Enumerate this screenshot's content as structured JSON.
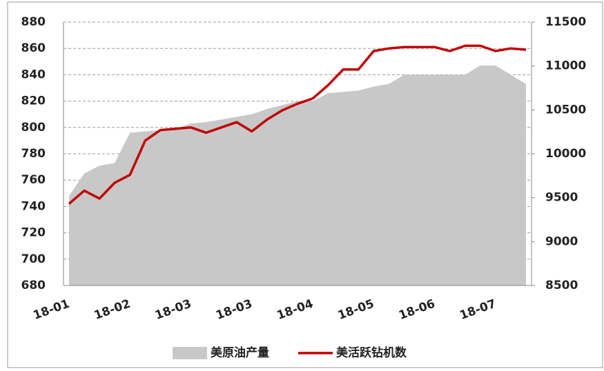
{
  "chart_data": {
    "type": "line",
    "categories": [
      "18-01",
      null,
      null,
      null,
      "18-02",
      null,
      null,
      null,
      "18-03",
      null,
      null,
      null,
      "18-03",
      null,
      null,
      null,
      "18-04",
      null,
      null,
      null,
      "18-05",
      null,
      null,
      null,
      "18-06",
      null,
      null,
      null,
      "18-07",
      null,
      null
    ],
    "series": [
      {
        "name": "美原油产量",
        "kind": "area",
        "axis": "y2",
        "color": "#c8c8c8",
        "values": [
          9520,
          9775,
          9865,
          9895,
          10240,
          10255,
          10270,
          10285,
          10345,
          10360,
          10390,
          10420,
          10450,
          10510,
          10555,
          10600,
          10600,
          10690,
          10705,
          10720,
          10765,
          10795,
          10900,
          10900,
          10900,
          10900,
          10900,
          11005,
          11005,
          10900,
          10795
        ]
      },
      {
        "name": "美活跃钻机数",
        "kind": "line",
        "color": "#c00000",
        "values": [
          742,
          752,
          746,
          758,
          764,
          790,
          798,
          799,
          800,
          796,
          800,
          804,
          797,
          806,
          813,
          818,
          822,
          832,
          844,
          844,
          858,
          860,
          861,
          861,
          861,
          858,
          862,
          862,
          858,
          860,
          859
        ]
      }
    ],
    "ylim": [
      680,
      880
    ],
    "yticks": [
      680,
      700,
      720,
      740,
      760,
      780,
      800,
      820,
      840,
      860,
      880
    ],
    "y2lim": [
      8500,
      11500
    ],
    "y2ticks": [
      8500,
      9000,
      9500,
      10000,
      10500,
      11000,
      11500
    ],
    "grid": true,
    "legend": "bottom"
  }
}
